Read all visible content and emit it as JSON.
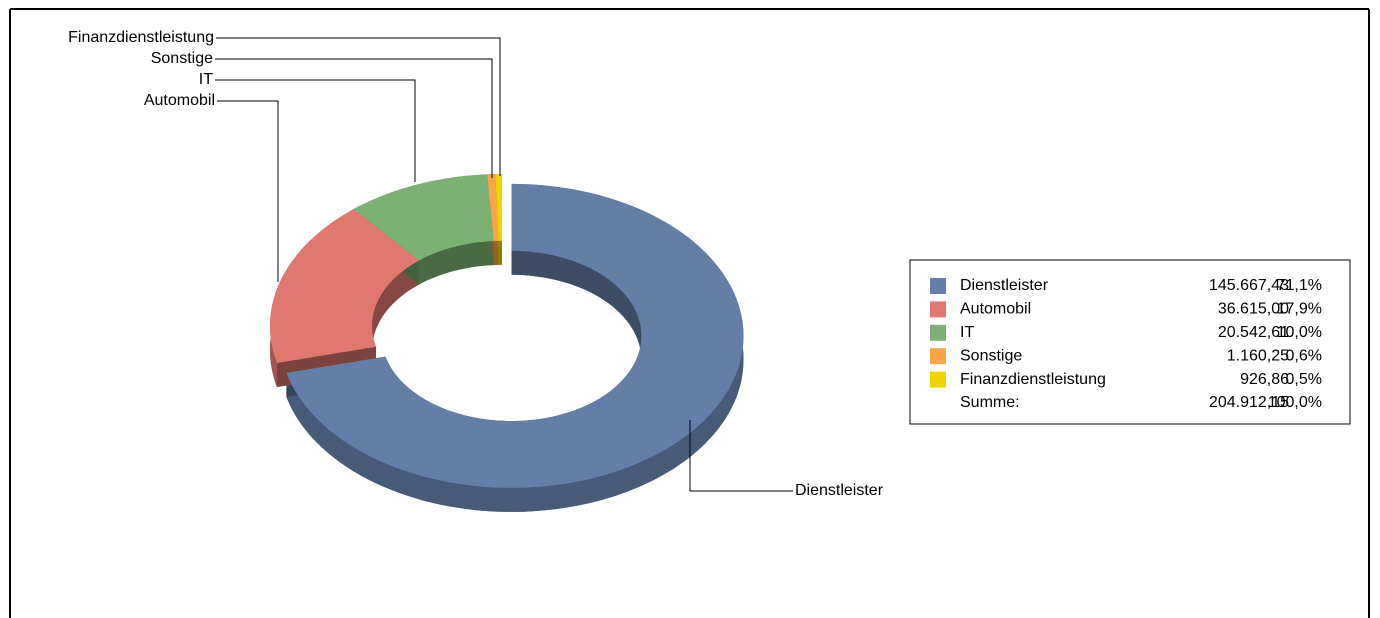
{
  "chart_data": {
    "type": "donut3d",
    "categories": [
      "Dienstleister",
      "Automobil",
      "IT",
      "Sonstige",
      "Finanzdienstleistung"
    ],
    "values": [
      145667.43,
      36615.0,
      20542.61,
      1160.25,
      926.86
    ],
    "value_labels": [
      "145.667,43",
      "36.615,00",
      "20.542,61",
      "1.160,25",
      "926,86"
    ],
    "percents": [
      71.1,
      17.9,
      10.0,
      0.6,
      0.5
    ],
    "percent_labels": [
      "71,1%",
      "17,9%",
      "10,0%",
      "0,6%",
      "0,5%"
    ],
    "colors": [
      "#637ea7",
      "#e07870",
      "#7bb172",
      "#f9a34a",
      "#f0d400"
    ],
    "total_name": "Summe:",
    "total": 204912.15,
    "total_label": "204.912,15",
    "total_percent": 100.0,
    "total_percent_label": "100,0%",
    "legend": "right"
  }
}
